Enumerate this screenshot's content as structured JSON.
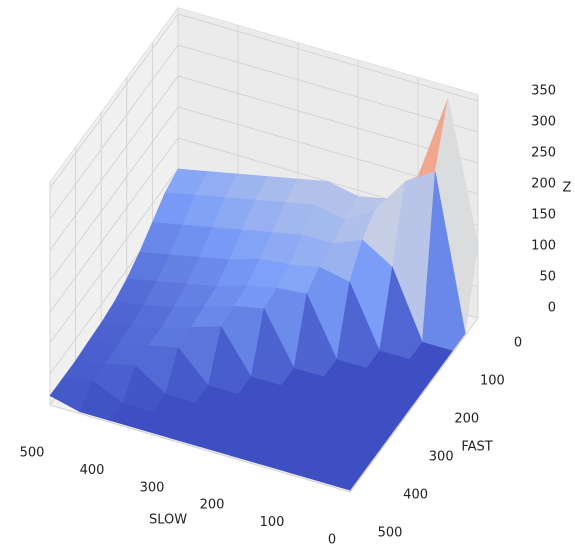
{
  "chart_data": {
    "type": "surface3d",
    "xlabel": "SLOW",
    "ylabel": "FAST",
    "zlabel": "Z",
    "x": [
      0,
      50,
      100,
      150,
      200,
      250,
      300,
      350,
      400,
      450,
      500
    ],
    "y": [
      0,
      50,
      100,
      150,
      200,
      250,
      300,
      350,
      400,
      450,
      500
    ],
    "z": [
      [
        120,
        3,
        3,
        3,
        3,
        3,
        3,
        3,
        3,
        3,
        3
      ],
      [
        340,
        250,
        3,
        3,
        3,
        3,
        3,
        3,
        3,
        3,
        3
      ],
      [
        200,
        220,
        110,
        3,
        3,
        3,
        3,
        3,
        3,
        3,
        3
      ],
      [
        150,
        160,
        140,
        100,
        3,
        3,
        3,
        3,
        3,
        3,
        3
      ],
      [
        140,
        130,
        120,
        110,
        95,
        3,
        3,
        3,
        3,
        3,
        3
      ],
      [
        150,
        140,
        120,
        100,
        90,
        85,
        3,
        3,
        3,
        3,
        3
      ],
      [
        140,
        130,
        110,
        95,
        80,
        75,
        70,
        3,
        3,
        3,
        3
      ],
      [
        130,
        120,
        100,
        80,
        65,
        60,
        55,
        50,
        3,
        3,
        3
      ],
      [
        120,
        110,
        90,
        70,
        55,
        45,
        40,
        40,
        35,
        3,
        3
      ],
      [
        110,
        100,
        80,
        60,
        45,
        35,
        30,
        28,
        25,
        25,
        3
      ],
      [
        100,
        90,
        70,
        50,
        35,
        25,
        20,
        18,
        15,
        15,
        15
      ]
    ],
    "xlim": [
      0,
      500
    ],
    "ylim": [
      0,
      500
    ],
    "zlim": [
      0,
      360
    ],
    "xticks": [
      0,
      100,
      200,
      300,
      400,
      500
    ],
    "yticks": [
      0,
      100,
      200,
      300,
      400,
      500
    ],
    "zticks": [
      0,
      50,
      100,
      150,
      200,
      250,
      300,
      350
    ],
    "colormap": "coolwarm",
    "grid": true
  }
}
